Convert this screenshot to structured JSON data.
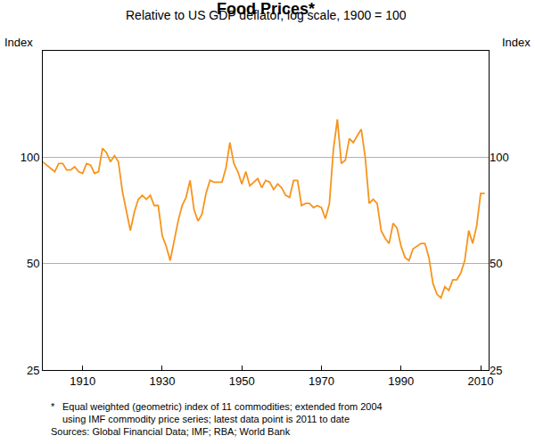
{
  "chart_data": {
    "type": "line",
    "title": "Food Prices*",
    "subtitle": "Relative to US GDP deflator, log scale, 1900 = 100",
    "ylabel": "Index",
    "y2label": "Index",
    "footnote": {
      "marker": "*",
      "lines": [
        "Equal weighted (geometric) index of 11 commodities; extended from 2004",
        "using IMF commodity price series; latest data point is 2011 to date"
      ]
    },
    "sources": "Sources: Global Financial Data; IMF; RBA; World Bank",
    "log": "y",
    "grid": true,
    "xlim": [
      1900,
      2012
    ],
    "xticks": [
      1910,
      1930,
      1950,
      1970,
      1990,
      2010
    ],
    "ylim": [
      25,
      200
    ],
    "yticks": [
      25,
      50,
      100
    ],
    "y2lim": [
      25,
      200
    ],
    "y2ticks": [
      25,
      50,
      100
    ],
    "x": [
      1900,
      1901,
      1902,
      1903,
      1904,
      1905,
      1906,
      1907,
      1908,
      1909,
      1910,
      1911,
      1912,
      1913,
      1914,
      1915,
      1916,
      1917,
      1918,
      1919,
      1920,
      1921,
      1922,
      1923,
      1924,
      1925,
      1926,
      1927,
      1928,
      1929,
      1930,
      1931,
      1932,
      1933,
      1934,
      1935,
      1936,
      1937,
      1938,
      1939,
      1940,
      1941,
      1942,
      1943,
      1944,
      1945,
      1946,
      1947,
      1948,
      1949,
      1950,
      1951,
      1952,
      1953,
      1954,
      1955,
      1956,
      1957,
      1958,
      1959,
      1960,
      1961,
      1962,
      1963,
      1964,
      1965,
      1966,
      1967,
      1968,
      1969,
      1970,
      1971,
      1972,
      1973,
      1974,
      1975,
      1976,
      1977,
      1978,
      1979,
      1980,
      1981,
      1982,
      1983,
      1984,
      1985,
      1986,
      1987,
      1988,
      1989,
      1990,
      1991,
      1992,
      1993,
      1994,
      1995,
      1996,
      1997,
      1998,
      1999,
      2000,
      2001,
      2002,
      2003,
      2004,
      2005,
      2006,
      2007,
      2008,
      2009,
      2010,
      2011
    ],
    "series": [
      {
        "name": "Food Prices",
        "color": "#f7941d",
        "values": [
          97,
          95,
          93,
          91,
          96,
          96,
          92,
          92,
          94,
          91,
          90,
          96,
          95,
          90,
          91,
          106,
          103,
          97,
          101,
          97,
          80,
          71,
          62,
          70,
          76,
          78,
          76,
          78,
          73,
          73,
          60,
          56,
          51,
          58,
          66,
          73,
          77,
          86,
          71,
          66,
          69,
          79,
          86,
          85,
          85,
          85,
          93,
          110,
          96,
          91,
          84,
          91,
          83,
          85,
          87,
          82,
          86,
          85,
          81,
          84,
          82,
          78,
          77,
          86,
          86,
          73,
          74,
          74,
          72,
          73,
          72,
          67,
          74,
          105,
          128,
          96,
          98,
          113,
          110,
          115,
          120,
          100,
          74,
          76,
          74,
          62,
          59,
          57,
          65,
          63,
          56,
          52,
          51,
          55,
          56,
          57,
          57,
          52,
          44,
          41,
          40,
          43,
          42,
          45,
          45,
          47,
          51,
          62,
          57,
          64,
          79,
          79
        ]
      }
    ]
  }
}
